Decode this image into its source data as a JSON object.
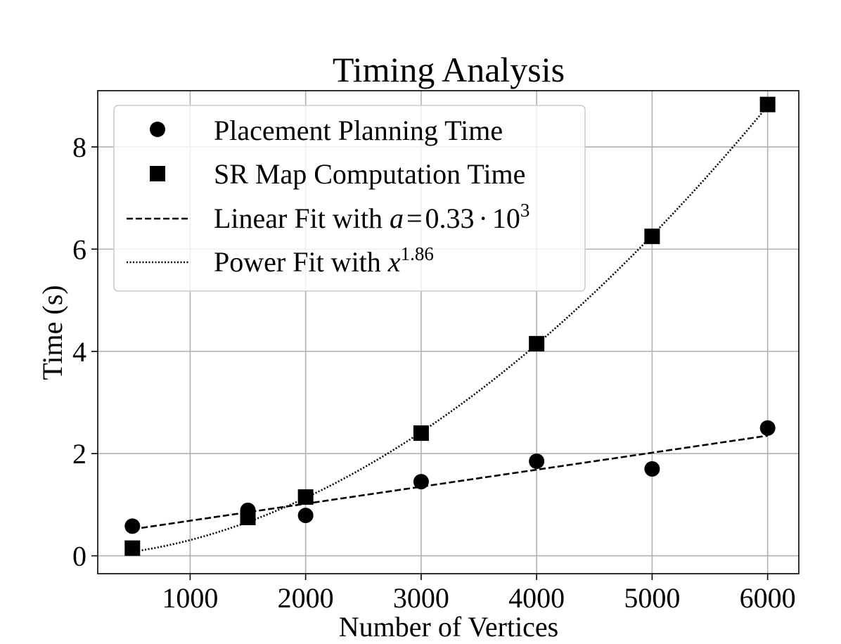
{
  "chart_data": {
    "type": "scatter",
    "title": "Timing Analysis",
    "xlabel": "Number of Vertices",
    "ylabel": "Time (s)",
    "xlim": [
      200,
      6270
    ],
    "ylim": [
      -0.35,
      9.1
    ],
    "x_ticks": [
      1000,
      2000,
      3000,
      4000,
      5000,
      6000
    ],
    "y_ticks": [
      0,
      2,
      4,
      6,
      8
    ],
    "grid": true,
    "legend_position": "top-left",
    "series": [
      {
        "name": "Placement Planning Time",
        "marker": "circle",
        "x": [
          500,
          1500,
          2000,
          3000,
          4000,
          5000,
          6000
        ],
        "y": [
          0.58,
          0.89,
          0.79,
          1.45,
          1.85,
          1.7,
          2.5
        ]
      },
      {
        "name": "SR Map Computation Time",
        "marker": "square",
        "x": [
          500,
          1500,
          2000,
          3000,
          4000,
          5000,
          6000
        ],
        "y": [
          0.15,
          0.75,
          1.15,
          2.4,
          4.15,
          6.25,
          8.83
        ]
      }
    ],
    "fits": [
      {
        "name_prefix": "Linear Fit with ",
        "name_var": "a",
        "name_eq": "=",
        "name_value": "0.33",
        "name_dot": "·",
        "name_base": "10",
        "name_exp": "3",
        "style": "dashed",
        "form": "linear",
        "endpoints_x": [
          500,
          6000
        ],
        "endpoints_y": [
          0.52,
          2.35
        ]
      },
      {
        "name_prefix": "Power Fit with ",
        "name_var": "x",
        "name_exp": "1.86",
        "style": "dotted",
        "form": "power",
        "exponent": 1.86,
        "endpoints_x": [
          500,
          6000
        ],
        "endpoints_y": [
          0.08,
          8.8
        ]
      }
    ]
  }
}
